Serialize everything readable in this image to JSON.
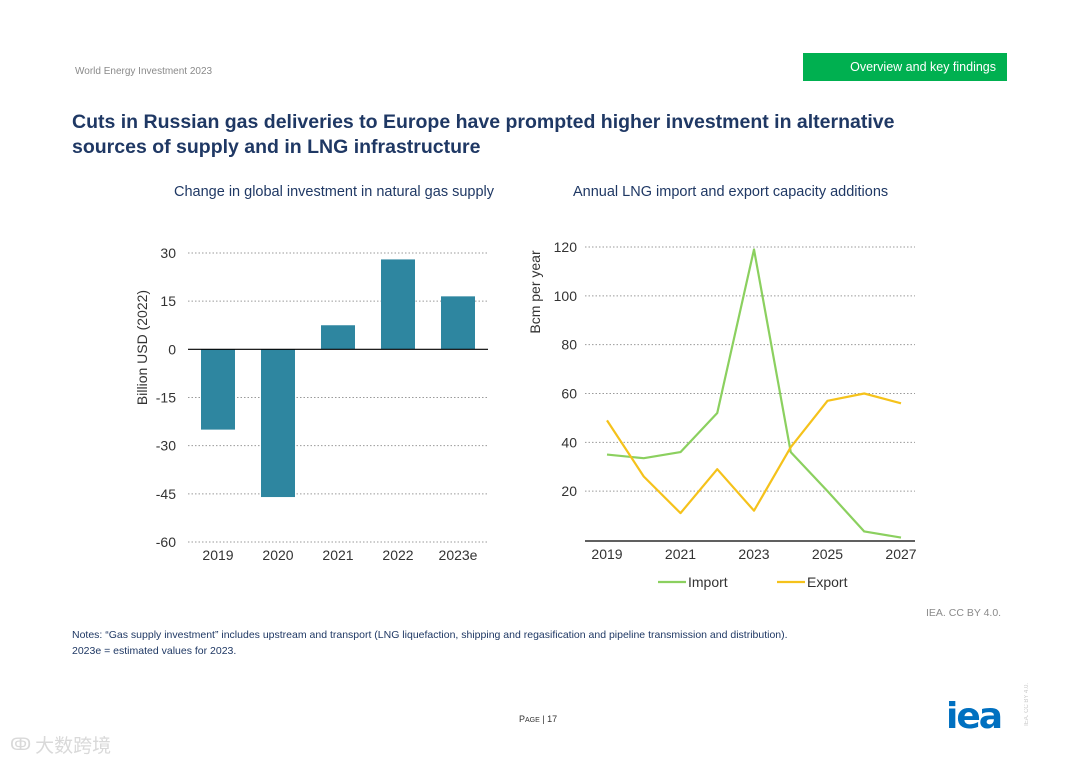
{
  "header": {
    "doc_title": "World Energy Investment 2023",
    "section": "Overview and key findings"
  },
  "page_title": "Cuts in Russian gas deliveries to Europe have prompted higher investment in alternative sources of supply and in LNG infrastructure",
  "notes": [
    "Notes: “Gas supply investment” includes upstream and transport (LNG liquefaction, shipping and regasification and pipeline transmission and distribution).",
    "2023e = estimated values for 2023."
  ],
  "credit": "IEA. CC BY 4.0.",
  "page": {
    "label": "Page",
    "number": "17"
  },
  "logo_text": "iea",
  "side_license": "IEA. CC BY 4.0.",
  "watermark_text": "大数跨境",
  "colors": {
    "bar": "#2e86a0",
    "import": "#8bd05f",
    "export": "#f5c21b",
    "title": "#1f3864",
    "badge": "#00b050"
  },
  "chart_data": [
    {
      "type": "bar",
      "title": "Change in global investment in natural gas supply",
      "ylabel": "Billion USD (2022)",
      "categories": [
        "2019",
        "2020",
        "2021",
        "2022",
        "2023e"
      ],
      "values": [
        -25,
        -46,
        7.5,
        28,
        16.5
      ],
      "ylim": [
        -60,
        30
      ],
      "yticks": [
        30,
        15,
        0,
        -15,
        -30,
        -45,
        -60
      ],
      "grid": true
    },
    {
      "type": "line",
      "title": "Annual LNG import and export capacity additions",
      "ylabel": "Bcm per year",
      "x": [
        2019,
        2020,
        2021,
        2022,
        2023,
        2024,
        2025,
        2026,
        2027
      ],
      "xticks": [
        "2019",
        "2021",
        "2023",
        "2025",
        "2027"
      ],
      "yticks": [
        120,
        100,
        80,
        60,
        40,
        20
      ],
      "ylim": [
        0,
        120
      ],
      "grid": true,
      "legend": "bottom",
      "series": [
        {
          "name": "Import",
          "values": [
            35,
            33.5,
            36,
            52,
            119,
            36,
            20,
            3.5,
            1
          ]
        },
        {
          "name": "Export",
          "values": [
            49,
            26,
            11,
            29,
            12,
            38,
            57,
            60,
            56
          ]
        }
      ]
    }
  ]
}
